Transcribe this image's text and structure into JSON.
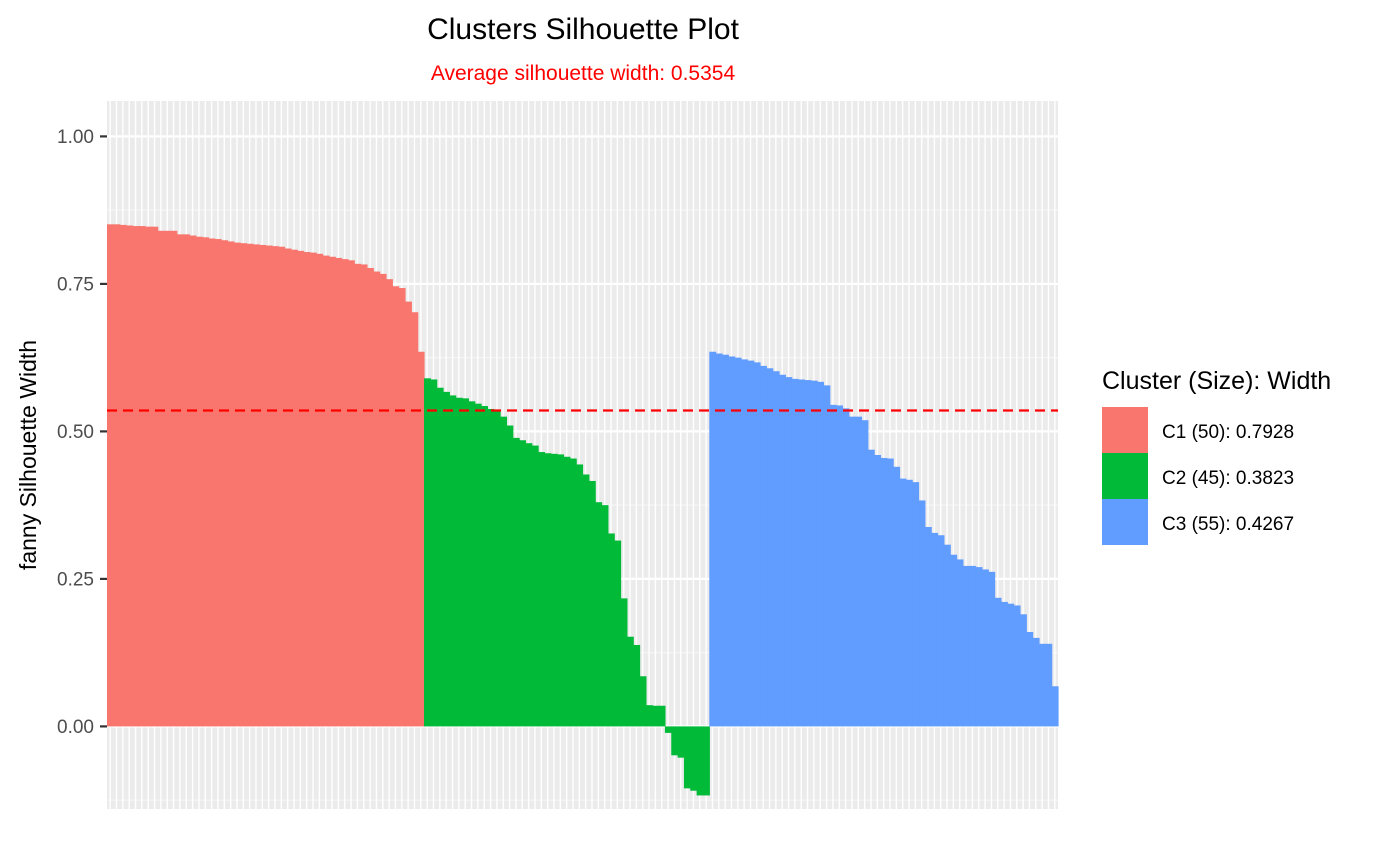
{
  "chart_data": {
    "type": "bar",
    "title": "Clusters Silhouette Plot",
    "subtitle": "Average silhouette width: 0.5354",
    "xlabel": "",
    "ylabel": "fanny Silhouette Width",
    "ylim": [
      -0.14,
      1.06
    ],
    "yticks": [
      0.0,
      0.25,
      0.5,
      0.75,
      1.0
    ],
    "yticklabels": [
      "0.00",
      "0.25",
      "0.50",
      "0.75",
      "1.00"
    ],
    "average_line": 0.5354,
    "legend": {
      "title": "Cluster (Size): Width",
      "position": "right",
      "entries": [
        "C1 (50): 0.7928",
        "C2 (45): 0.3823",
        "C3 (55): 0.4267"
      ]
    },
    "series": [
      {
        "name": "C1 (50): 0.7928",
        "color": "#F8766D",
        "values": [
          0.851,
          0.851,
          0.85,
          0.849,
          0.848,
          0.848,
          0.847,
          0.847,
          0.84,
          0.84,
          0.84,
          0.834,
          0.834,
          0.832,
          0.83,
          0.829,
          0.827,
          0.826,
          0.824,
          0.822,
          0.82,
          0.819,
          0.818,
          0.817,
          0.816,
          0.815,
          0.814,
          0.813,
          0.81,
          0.808,
          0.806,
          0.804,
          0.803,
          0.801,
          0.798,
          0.796,
          0.794,
          0.792,
          0.79,
          0.784,
          0.783,
          0.777,
          0.771,
          0.767,
          0.758,
          0.746,
          0.743,
          0.72,
          0.702,
          0.635
        ]
      },
      {
        "name": "C2 (45): 0.3823",
        "color": "#00BA38",
        "values": [
          0.59,
          0.588,
          0.574,
          0.567,
          0.561,
          0.557,
          0.556,
          0.551,
          0.547,
          0.543,
          0.538,
          0.535,
          0.525,
          0.51,
          0.489,
          0.485,
          0.48,
          0.476,
          0.465,
          0.463,
          0.462,
          0.461,
          0.457,
          0.454,
          0.444,
          0.427,
          0.416,
          0.38,
          0.375,
          0.327,
          0.315,
          0.217,
          0.152,
          0.138,
          0.085,
          0.036,
          0.035,
          0.035,
          -0.011,
          -0.049,
          -0.053,
          -0.105,
          -0.109,
          -0.117,
          -0.117
        ]
      },
      {
        "name": "C3 (55): 0.4267",
        "color": "#619CFF",
        "values": [
          0.635,
          0.632,
          0.63,
          0.627,
          0.625,
          0.622,
          0.62,
          0.617,
          0.611,
          0.607,
          0.602,
          0.596,
          0.592,
          0.589,
          0.588,
          0.587,
          0.586,
          0.584,
          0.578,
          0.545,
          0.544,
          0.539,
          0.525,
          0.525,
          0.519,
          0.469,
          0.46,
          0.455,
          0.454,
          0.44,
          0.42,
          0.418,
          0.414,
          0.383,
          0.338,
          0.328,
          0.324,
          0.308,
          0.291,
          0.283,
          0.272,
          0.272,
          0.27,
          0.266,
          0.262,
          0.218,
          0.211,
          0.208,
          0.205,
          0.19,
          0.16,
          0.15,
          0.14,
          0.14,
          0.068
        ]
      }
    ]
  }
}
